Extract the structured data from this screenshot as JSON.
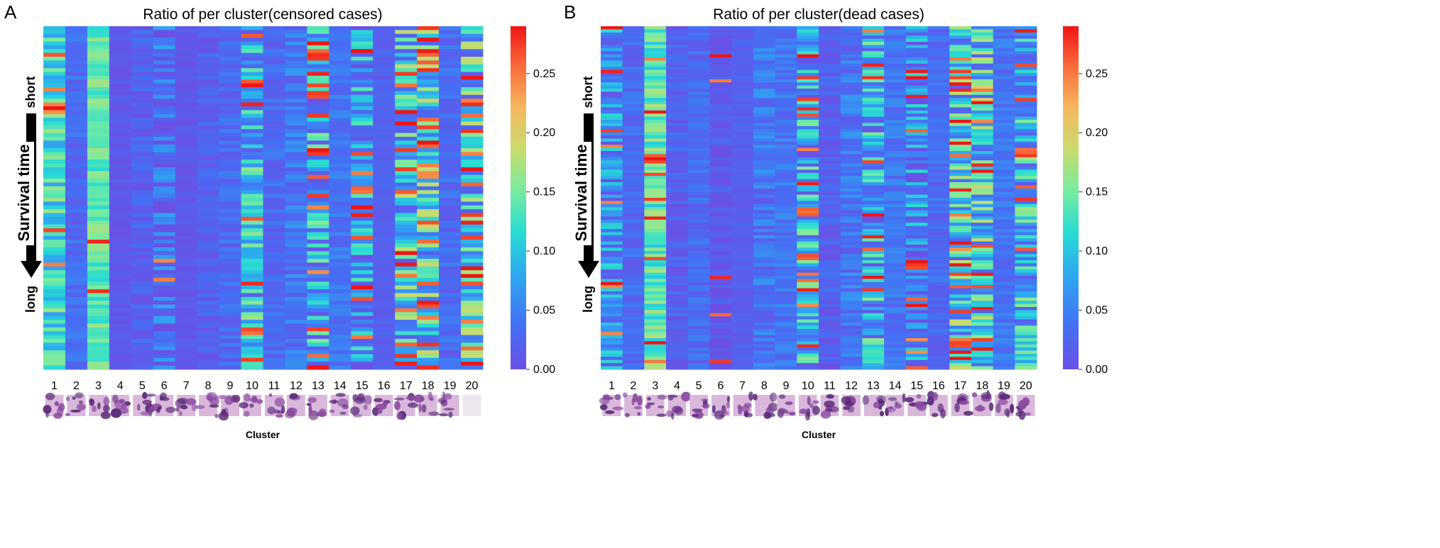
{
  "chart_data": [
    {
      "panel": "A",
      "type": "heatmap",
      "title": "Ratio of per cluster(censored cases)",
      "xlabel": "Cluster",
      "ylabel": "Survival time",
      "y_top_tag": "short",
      "y_bottom_tag": "long",
      "categories": [
        "1",
        "2",
        "3",
        "4",
        "5",
        "6",
        "7",
        "8",
        "9",
        "10",
        "11",
        "12",
        "13",
        "14",
        "15",
        "16",
        "17",
        "18",
        "19",
        "20"
      ],
      "colorbar": {
        "min": 0.0,
        "max": 0.29,
        "ticks": [
          "0.00",
          "0.05",
          "0.10",
          "0.15",
          "0.20",
          "0.25"
        ],
        "tick_values": [
          0,
          0.05,
          0.1,
          0.15,
          0.2,
          0.25
        ],
        "colormap": "rainbow"
      },
      "n_cases": 90,
      "cluster_profiles": [
        {
          "base": 0.12,
          "spread": 0.05,
          "hot_rate": 0.04
        },
        {
          "base": 0.03,
          "spread": 0.02,
          "hot_rate": 0.0
        },
        {
          "base": 0.14,
          "spread": 0.03,
          "hot_rate": 0.03
        },
        {
          "base": 0.01,
          "spread": 0.01,
          "hot_rate": 0.0
        },
        {
          "base": 0.02,
          "spread": 0.02,
          "hot_rate": 0.0
        },
        {
          "base": 0.03,
          "spread": 0.05,
          "hot_rate": 0.04
        },
        {
          "base": 0.01,
          "spread": 0.01,
          "hot_rate": 0.0
        },
        {
          "base": 0.02,
          "spread": 0.02,
          "hot_rate": 0.0
        },
        {
          "base": 0.03,
          "spread": 0.02,
          "hot_rate": 0.0
        },
        {
          "base": 0.09,
          "spread": 0.08,
          "hot_rate": 0.14
        },
        {
          "base": 0.03,
          "spread": 0.02,
          "hot_rate": 0.0
        },
        {
          "base": 0.04,
          "spread": 0.03,
          "hot_rate": 0.0
        },
        {
          "base": 0.08,
          "spread": 0.08,
          "hot_rate": 0.16
        },
        {
          "base": 0.04,
          "spread": 0.02,
          "hot_rate": 0.0
        },
        {
          "base": 0.06,
          "spread": 0.08,
          "hot_rate": 0.18
        },
        {
          "base": 0.02,
          "spread": 0.01,
          "hot_rate": 0.0
        },
        {
          "base": 0.1,
          "spread": 0.09,
          "hot_rate": 0.16
        },
        {
          "base": 0.11,
          "spread": 0.09,
          "hot_rate": 0.2
        },
        {
          "base": 0.03,
          "spread": 0.02,
          "hot_rate": 0.0
        },
        {
          "base": 0.1,
          "spread": 0.09,
          "hot_rate": 0.18
        }
      ],
      "seed": 7
    },
    {
      "panel": "B",
      "type": "heatmap",
      "title": "Ratio of per cluster(dead cases)",
      "xlabel": "Cluster",
      "ylabel": "Survival time",
      "y_top_tag": "short",
      "y_bottom_tag": "long",
      "categories": [
        "1",
        "2",
        "3",
        "4",
        "5",
        "6",
        "7",
        "8",
        "9",
        "10",
        "11",
        "12",
        "13",
        "14",
        "15",
        "16",
        "17",
        "18",
        "19",
        "20"
      ],
      "colorbar": {
        "min": 0.0,
        "max": 0.29,
        "ticks": [
          "0.00",
          "0.05",
          "0.10",
          "0.15",
          "0.20",
          "0.25"
        ],
        "tick_values": [
          0,
          0.05,
          0.1,
          0.15,
          0.2,
          0.25
        ],
        "colormap": "rainbow"
      },
      "n_cases": 110,
      "cluster_profiles": [
        {
          "base": 0.06,
          "spread": 0.06,
          "hot_rate": 0.06
        },
        {
          "base": 0.03,
          "spread": 0.02,
          "hot_rate": 0.0
        },
        {
          "base": 0.14,
          "spread": 0.04,
          "hot_rate": 0.08
        },
        {
          "base": 0.02,
          "spread": 0.02,
          "hot_rate": 0.0
        },
        {
          "base": 0.03,
          "spread": 0.02,
          "hot_rate": 0.0
        },
        {
          "base": 0.01,
          "spread": 0.02,
          "hot_rate": 0.05
        },
        {
          "base": 0.02,
          "spread": 0.01,
          "hot_rate": 0.0
        },
        {
          "base": 0.04,
          "spread": 0.03,
          "hot_rate": 0.0
        },
        {
          "base": 0.04,
          "spread": 0.02,
          "hot_rate": 0.0
        },
        {
          "base": 0.08,
          "spread": 0.08,
          "hot_rate": 0.14
        },
        {
          "base": 0.02,
          "spread": 0.02,
          "hot_rate": 0.0
        },
        {
          "base": 0.04,
          "spread": 0.03,
          "hot_rate": 0.0
        },
        {
          "base": 0.08,
          "spread": 0.08,
          "hot_rate": 0.14
        },
        {
          "base": 0.04,
          "spread": 0.02,
          "hot_rate": 0.0
        },
        {
          "base": 0.05,
          "spread": 0.07,
          "hot_rate": 0.1
        },
        {
          "base": 0.03,
          "spread": 0.02,
          "hot_rate": 0.0
        },
        {
          "base": 0.1,
          "spread": 0.09,
          "hot_rate": 0.16
        },
        {
          "base": 0.11,
          "spread": 0.09,
          "hot_rate": 0.16
        },
        {
          "base": 0.04,
          "spread": 0.02,
          "hot_rate": 0.0
        },
        {
          "base": 0.09,
          "spread": 0.08,
          "hot_rate": 0.12
        }
      ],
      "seed": 19
    }
  ],
  "panel_labels": [
    "A",
    "B"
  ],
  "colors": {
    "background": "#ffffff",
    "arrow": "#000000"
  }
}
